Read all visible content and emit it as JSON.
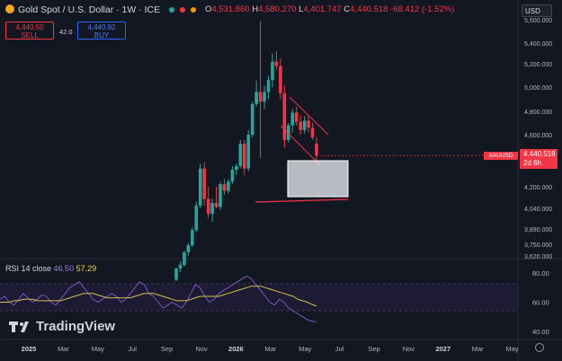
{
  "header": {
    "title": "Gold Spot / U.S. Dollar · 1W · ICE",
    "ohlc": [
      {
        "label": "O",
        "value": "4,531.860"
      },
      {
        "label": "H",
        "value": "4,580.270"
      },
      {
        "label": "L",
        "value": "4,401.747"
      },
      {
        "label": "C",
        "value": "4,440.518"
      }
    ],
    "change": "-68.412 (-1.52%)"
  },
  "trade": {
    "sell_price": "4,440.50",
    "sell_label": "SELL",
    "spread": "42.0",
    "buy_price": "4,440.92",
    "buy_label": "BUY"
  },
  "currency": "USD",
  "price_tag": {
    "symbol": "XAUUSD",
    "price": "4,440.518",
    "countdown": "2d 6h"
  },
  "rsi": {
    "label": "RSI 14 close",
    "value1": "46.50",
    "value2": "57.29"
  },
  "brand": "TradingView",
  "colors": {
    "up": "#26a69a",
    "down": "#f23645",
    "rsi": "#7e57c2",
    "rsi_ma": "#d4c04a",
    "bg": "#131722"
  },
  "chart_data": [
    {
      "type": "candlestick",
      "title": "Gold Spot / U.S. Dollar · 1W · ICE",
      "y_ticks": [
        "5,600.000",
        "5,400.000",
        "5,200.000",
        "5,000.000",
        "4,800.000",
        "4,600.000",
        "4,200.000",
        "4,040.000",
        "3,890.000",
        "3,750.000",
        "3,620.000"
      ],
      "x_ticks": [
        "2025",
        "Mar",
        "May",
        "Jul",
        "Sep",
        "Nov",
        "2026",
        "Mar",
        "May",
        "Jul",
        "Sep",
        "Nov",
        "2027",
        "Mar",
        "May"
      ],
      "candles": [
        {
          "o": 3355,
          "h": 3490,
          "l": 3340,
          "c": 3480
        },
        {
          "o": 3480,
          "h": 3560,
          "l": 3440,
          "c": 3520
        },
        {
          "o": 3520,
          "h": 3680,
          "l": 3500,
          "c": 3660
        },
        {
          "o": 3660,
          "h": 3760,
          "l": 3620,
          "c": 3740
        },
        {
          "o": 3740,
          "h": 3900,
          "l": 3720,
          "c": 3880
        },
        {
          "o": 3880,
          "h": 4090,
          "l": 3860,
          "c": 4060
        },
        {
          "o": 4060,
          "h": 4380,
          "l": 4040,
          "c": 4340
        },
        {
          "o": 4340,
          "h": 4390,
          "l": 4060,
          "c": 4110
        },
        {
          "o": 4110,
          "h": 4200,
          "l": 3970,
          "c": 4000
        },
        {
          "o": 4000,
          "h": 4110,
          "l": 3940,
          "c": 4080
        },
        {
          "o": 4080,
          "h": 4200,
          "l": 4040,
          "c": 4050
        },
        {
          "o": 4050,
          "h": 4240,
          "l": 4030,
          "c": 4220
        },
        {
          "o": 4220,
          "h": 4260,
          "l": 4140,
          "c": 4170
        },
        {
          "o": 4170,
          "h": 4260,
          "l": 4150,
          "c": 4240
        },
        {
          "o": 4240,
          "h": 4360,
          "l": 4220,
          "c": 4330
        },
        {
          "o": 4330,
          "h": 4380,
          "l": 4290,
          "c": 4360
        },
        {
          "o": 4360,
          "h": 4560,
          "l": 4340,
          "c": 4530
        },
        {
          "o": 4530,
          "h": 4560,
          "l": 4290,
          "c": 4340
        },
        {
          "o": 4340,
          "h": 4640,
          "l": 4320,
          "c": 4600
        },
        {
          "o": 4600,
          "h": 4880,
          "l": 4580,
          "c": 4860
        },
        {
          "o": 4860,
          "h": 5060,
          "l": 4840,
          "c": 4960
        },
        {
          "o": 4960,
          "h": 5590,
          "l": 4420,
          "c": 4880
        },
        {
          "o": 4880,
          "h": 5010,
          "l": 4820,
          "c": 4960
        },
        {
          "o": 4960,
          "h": 5100,
          "l": 4900,
          "c": 5060
        },
        {
          "o": 5060,
          "h": 5300,
          "l": 5000,
          "c": 5220
        },
        {
          "o": 5220,
          "h": 5320,
          "l": 5150,
          "c": 5180
        },
        {
          "o": 5180,
          "h": 5250,
          "l": 4900,
          "c": 4950
        },
        {
          "o": 4950,
          "h": 5010,
          "l": 4500,
          "c": 4560
        },
        {
          "o": 4560,
          "h": 4700,
          "l": 4540,
          "c": 4680
        },
        {
          "o": 4680,
          "h": 4820,
          "l": 4620,
          "c": 4790
        },
        {
          "o": 4790,
          "h": 4840,
          "l": 4680,
          "c": 4710
        },
        {
          "o": 4710,
          "h": 4770,
          "l": 4600,
          "c": 4640
        },
        {
          "o": 4640,
          "h": 4760,
          "l": 4610,
          "c": 4720
        },
        {
          "o": 4720,
          "h": 4760,
          "l": 4620,
          "c": 4660
        },
        {
          "o": 4660,
          "h": 4700,
          "l": 4560,
          "c": 4580
        },
        {
          "o": 4531.86,
          "h": 4580.27,
          "l": 4401.747,
          "c": 4440.518
        }
      ]
    },
    {
      "type": "line",
      "title": "RSI 14 close",
      "y_ticks": [
        "80.00",
        "60.00",
        "40.00"
      ],
      "series": [
        {
          "values": [
            62,
            64,
            60,
            58,
            62,
            66,
            63,
            60,
            62,
            65,
            64,
            60,
            58,
            62,
            66,
            70,
            72,
            74,
            70,
            66,
            62,
            60,
            62,
            64,
            66,
            64,
            60,
            62,
            66,
            70,
            74,
            72,
            66,
            64,
            60,
            56,
            58,
            60,
            58,
            56,
            60,
            66,
            72,
            70,
            64,
            60,
            62,
            66,
            68,
            70,
            72,
            74,
            76,
            78,
            76,
            72,
            68,
            64,
            60,
            58,
            62,
            60,
            56,
            54,
            52,
            50,
            48,
            47,
            46.5
          ]
        },
        {
          "values": [
            60,
            60,
            60,
            61,
            61,
            62,
            62,
            62,
            61,
            61,
            61,
            61,
            61,
            61,
            62,
            63,
            64,
            65,
            66,
            66,
            66,
            65,
            64,
            63,
            63,
            63,
            63,
            63,
            63,
            64,
            65,
            66,
            66,
            66,
            65,
            64,
            63,
            62,
            61,
            61,
            61,
            62,
            63,
            64,
            64,
            64,
            64,
            64,
            65,
            66,
            67,
            68,
            69,
            70,
            71,
            71,
            71,
            70,
            69,
            68,
            67,
            66,
            65,
            64,
            62,
            61,
            60,
            58.5,
            57.29
          ]
        }
      ]
    }
  ]
}
